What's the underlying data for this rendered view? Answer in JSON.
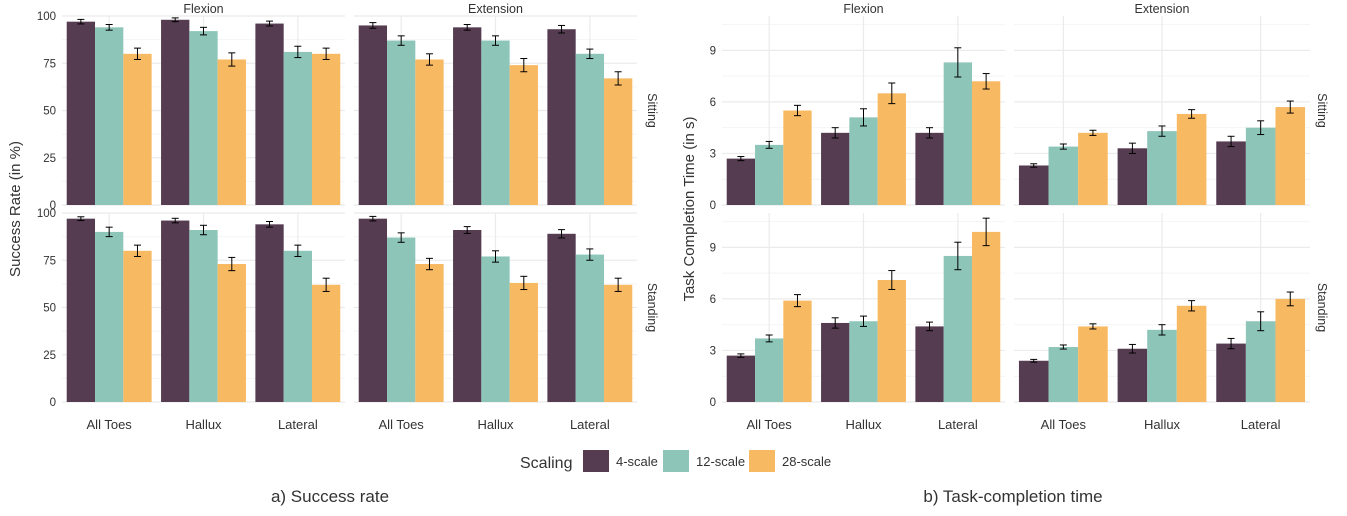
{
  "colors": {
    "4-scale": "#553c50",
    "12-scale": "#8dc5b9",
    "28-scale": "#f8b963",
    "grid": "#ebebeb",
    "strip": "#333333"
  },
  "legend": {
    "title": "Scaling",
    "items": [
      {
        "label": "4-scale",
        "color": "#553c50"
      },
      {
        "label": "12-scale",
        "color": "#8dc5b9"
      },
      {
        "label": "28-scale",
        "color": "#f8b963"
      }
    ]
  },
  "captions": {
    "a": "a) Success rate",
    "b": "b) Task-completion time"
  },
  "chart_data": [
    {
      "type": "bar",
      "title": "",
      "caption": "a) Success rate",
      "ylabel": "Success Rate (in %)",
      "xlabel": "",
      "ylim": [
        0,
        100
      ],
      "yticks": [
        0,
        25,
        50,
        75,
        100
      ],
      "categories": [
        "All Toes",
        "Hallux",
        "Lateral"
      ],
      "facet_columns": [
        "Flexion",
        "Extension"
      ],
      "facet_rows": [
        "Sitting",
        "Standing"
      ],
      "legend_position": "bottom",
      "grid": true,
      "panels": [
        {
          "col": "Flexion",
          "row": "Sitting",
          "series": [
            {
              "name": "4-scale",
              "values": [
                97,
                98,
                96
              ],
              "err": [
                1.2,
                1.0,
                1.3
              ]
            },
            {
              "name": "12-scale",
              "values": [
                94,
                92,
                81
              ],
              "err": [
                1.5,
                2.0,
                3.0
              ]
            },
            {
              "name": "28-scale",
              "values": [
                80,
                77,
                80
              ],
              "err": [
                3.0,
                3.5,
                3.0
              ]
            }
          ]
        },
        {
          "col": "Extension",
          "row": "Sitting",
          "series": [
            {
              "name": "4-scale",
              "values": [
                95,
                94,
                93
              ],
              "err": [
                1.5,
                1.5,
                2.0
              ]
            },
            {
              "name": "12-scale",
              "values": [
                87,
                87,
                80
              ],
              "err": [
                2.5,
                2.5,
                2.5
              ]
            },
            {
              "name": "28-scale",
              "values": [
                77,
                74,
                67
              ],
              "err": [
                3.0,
                3.5,
                3.5
              ]
            }
          ]
        },
        {
          "col": "Flexion",
          "row": "Standing",
          "series": [
            {
              "name": "4-scale",
              "values": [
                97,
                96,
                94
              ],
              "err": [
                1.0,
                1.2,
                1.5
              ]
            },
            {
              "name": "12-scale",
              "values": [
                90,
                91,
                80
              ],
              "err": [
                2.5,
                2.5,
                3.0
              ]
            },
            {
              "name": "28-scale",
              "values": [
                80,
                73,
                62
              ],
              "err": [
                3.0,
                3.5,
                3.5
              ]
            }
          ]
        },
        {
          "col": "Extension",
          "row": "Standing",
          "series": [
            {
              "name": "4-scale",
              "values": [
                97,
                91,
                89
              ],
              "err": [
                1.2,
                1.8,
                2.2
              ]
            },
            {
              "name": "12-scale",
              "values": [
                87,
                77,
                78
              ],
              "err": [
                2.5,
                3.0,
                3.0
              ]
            },
            {
              "name": "28-scale",
              "values": [
                73,
                63,
                62
              ],
              "err": [
                3.0,
                3.5,
                3.5
              ]
            }
          ]
        }
      ]
    },
    {
      "type": "bar",
      "title": "",
      "caption": "b) Task-completion time",
      "ylabel": "Task Completion Time (in s)",
      "xlabel": "",
      "ylim": [
        0,
        11
      ],
      "yticks": [
        0,
        3,
        6,
        9
      ],
      "categories": [
        "All Toes",
        "Hallux",
        "Lateral"
      ],
      "facet_columns": [
        "Flexion",
        "Extension"
      ],
      "facet_rows": [
        "Sitting",
        "Standing"
      ],
      "legend_position": "bottom",
      "grid": true,
      "panels": [
        {
          "col": "Flexion",
          "row": "Sitting",
          "series": [
            {
              "name": "4-scale",
              "values": [
                2.7,
                4.2,
                4.2
              ],
              "err": [
                0.12,
                0.3,
                0.3
              ]
            },
            {
              "name": "12-scale",
              "values": [
                3.5,
                5.1,
                8.3
              ],
              "err": [
                0.2,
                0.5,
                0.85
              ]
            },
            {
              "name": "28-scale",
              "values": [
                5.5,
                6.5,
                7.2
              ],
              "err": [
                0.3,
                0.6,
                0.45
              ]
            }
          ]
        },
        {
          "col": "Extension",
          "row": "Sitting",
          "series": [
            {
              "name": "4-scale",
              "values": [
                2.3,
                3.3,
                3.7
              ],
              "err": [
                0.1,
                0.3,
                0.3
              ]
            },
            {
              "name": "12-scale",
              "values": [
                3.4,
                4.3,
                4.5
              ],
              "err": [
                0.15,
                0.3,
                0.4
              ]
            },
            {
              "name": "28-scale",
              "values": [
                4.2,
                5.3,
                5.7
              ],
              "err": [
                0.15,
                0.25,
                0.35
              ]
            }
          ]
        },
        {
          "col": "Flexion",
          "row": "Standing",
          "series": [
            {
              "name": "4-scale",
              "values": [
                2.7,
                4.6,
                4.4
              ],
              "err": [
                0.1,
                0.3,
                0.25
              ]
            },
            {
              "name": "12-scale",
              "values": [
                3.7,
                4.7,
                8.5
              ],
              "err": [
                0.2,
                0.3,
                0.8
              ]
            },
            {
              "name": "28-scale",
              "values": [
                5.9,
                7.1,
                9.9
              ],
              "err": [
                0.35,
                0.55,
                0.8
              ]
            }
          ]
        },
        {
          "col": "Extension",
          "row": "Standing",
          "series": [
            {
              "name": "4-scale",
              "values": [
                2.4,
                3.1,
                3.4
              ],
              "err": [
                0.08,
                0.25,
                0.3
              ]
            },
            {
              "name": "12-scale",
              "values": [
                3.2,
                4.2,
                4.7
              ],
              "err": [
                0.12,
                0.3,
                0.55
              ]
            },
            {
              "name": "28-scale",
              "values": [
                4.4,
                5.6,
                6.0
              ],
              "err": [
                0.15,
                0.3,
                0.4
              ]
            }
          ]
        }
      ]
    }
  ]
}
